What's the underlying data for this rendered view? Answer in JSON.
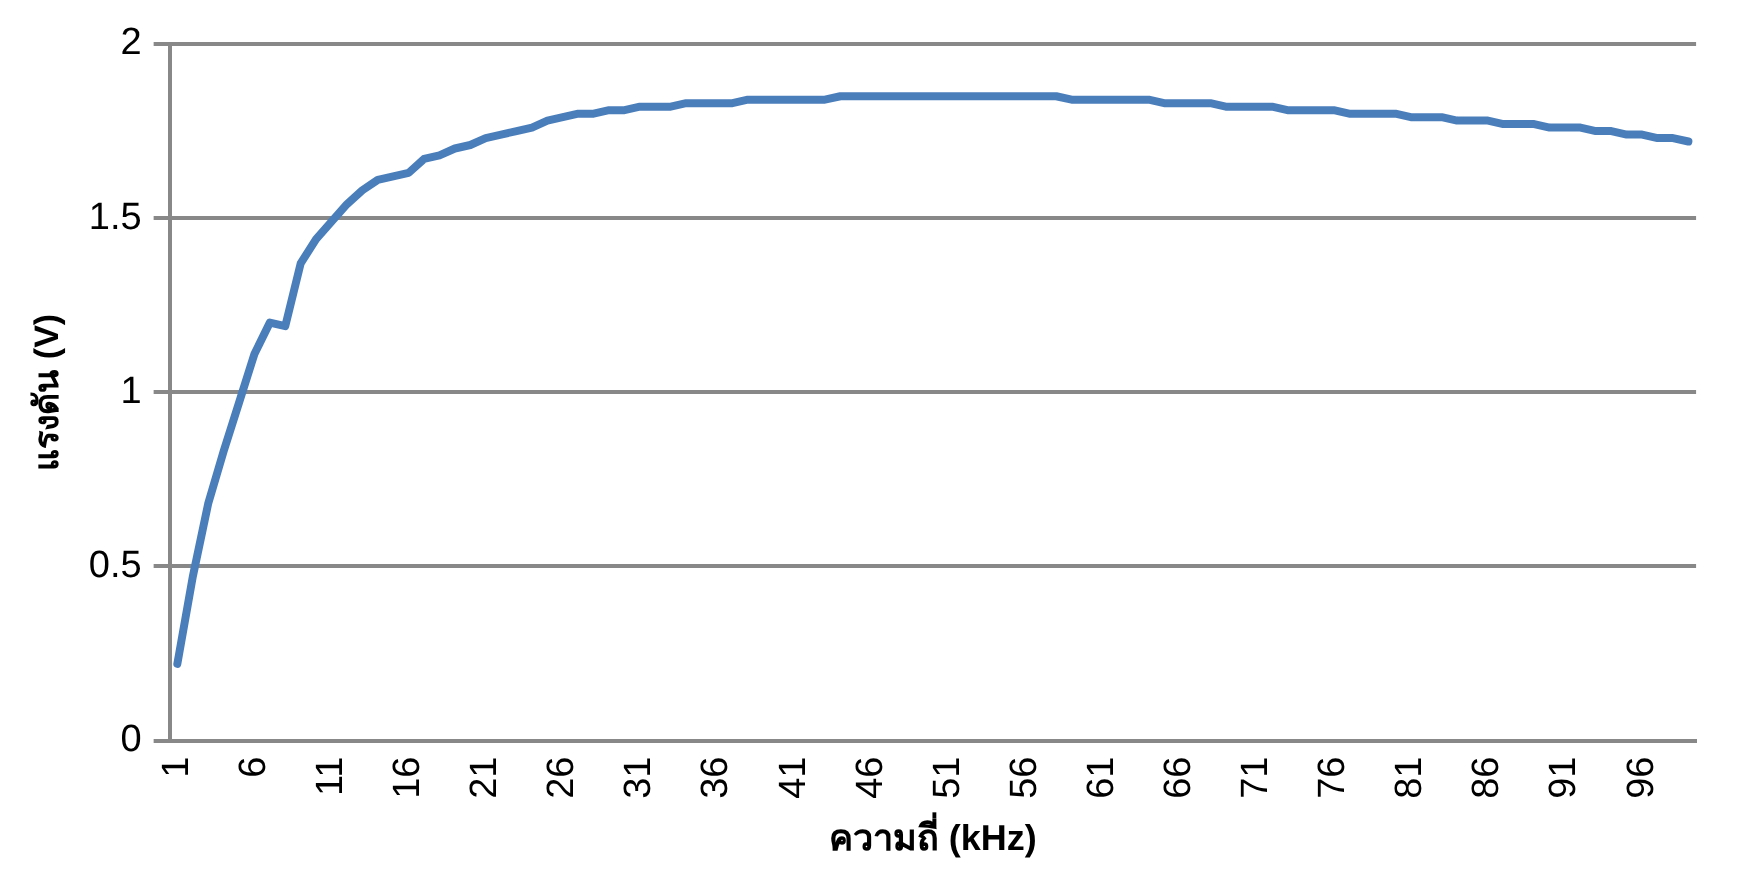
{
  "chart_data": {
    "type": "line",
    "xlabel": "ความถี่ (kHz)",
    "ylabel": "แรงดัน (V)",
    "categories": [
      "1",
      null,
      null,
      null,
      null,
      "6",
      null,
      null,
      null,
      null,
      "11",
      null,
      null,
      null,
      null,
      "16",
      null,
      null,
      null,
      null,
      "21",
      null,
      null,
      null,
      null,
      "26",
      null,
      null,
      null,
      null,
      "31",
      null,
      null,
      null,
      null,
      "36",
      null,
      null,
      null,
      null,
      "41",
      null,
      null,
      null,
      null,
      "46",
      null,
      null,
      null,
      null,
      "51",
      null,
      null,
      null,
      null,
      "56",
      null,
      null,
      null,
      null,
      "61",
      null,
      null,
      null,
      null,
      "66",
      null,
      null,
      null,
      null,
      "71",
      null,
      null,
      null,
      null,
      "76",
      null,
      null,
      null,
      null,
      "81",
      null,
      null,
      null,
      null,
      "86",
      null,
      null,
      null,
      null,
      "91",
      null,
      null,
      null,
      null,
      "96",
      null,
      null,
      null
    ],
    "series": [
      {
        "color": "#4a7ebb",
        "values": [
          0.22,
          0.47,
          0.68,
          0.83,
          0.97,
          1.11,
          1.2,
          1.19,
          1.37,
          1.44,
          1.49,
          1.54,
          1.58,
          1.61,
          1.62,
          1.63,
          1.67,
          1.68,
          1.7,
          1.71,
          1.73,
          1.74,
          1.75,
          1.76,
          1.78,
          1.79,
          1.8,
          1.8,
          1.81,
          1.81,
          1.82,
          1.82,
          1.82,
          1.83,
          1.83,
          1.83,
          1.83,
          1.84,
          1.84,
          1.84,
          1.84,
          1.84,
          1.84,
          1.85,
          1.85,
          1.85,
          1.85,
          1.85,
          1.85,
          1.85,
          1.85,
          1.85,
          1.85,
          1.85,
          1.85,
          1.85,
          1.85,
          1.85,
          1.84,
          1.84,
          1.84,
          1.84,
          1.84,
          1.84,
          1.83,
          1.83,
          1.83,
          1.83,
          1.82,
          1.82,
          1.82,
          1.82,
          1.81,
          1.81,
          1.81,
          1.81,
          1.8,
          1.8,
          1.8,
          1.8,
          1.79,
          1.79,
          1.79,
          1.78,
          1.78,
          1.78,
          1.77,
          1.77,
          1.77,
          1.76,
          1.76,
          1.76,
          1.75,
          1.75,
          1.74,
          1.74,
          1.73,
          1.73,
          1.72
        ]
      }
    ],
    "ylim": [
      0,
      2
    ],
    "yticks": [
      0,
      0.5,
      1,
      1.5,
      2
    ],
    "grid": "y",
    "legend": false,
    "marker": "none",
    "line_style": "solid"
  }
}
